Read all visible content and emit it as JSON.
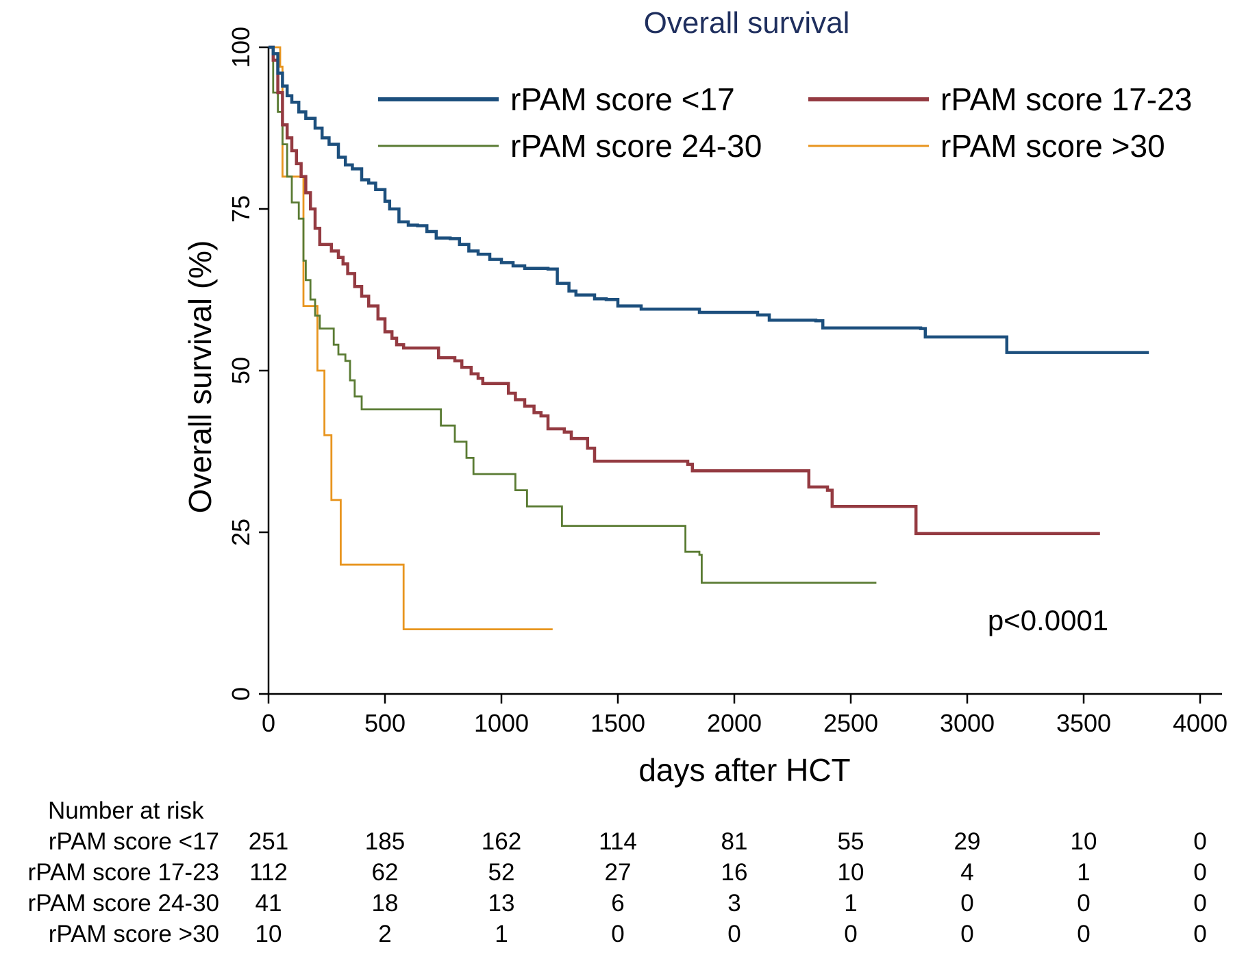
{
  "chart_data": {
    "type": "line",
    "subtype": "kaplan-meier step curve",
    "title": "Overall survival",
    "title_color": "#1f2f5e",
    "xlabel": "days after HCT",
    "ylabel": "Overall survival (%)",
    "xlim": [
      0,
      4000
    ],
    "ylim": [
      0,
      100
    ],
    "xticks": [
      0,
      500,
      1000,
      1500,
      2000,
      2500,
      3000,
      3500,
      4000
    ],
    "yticks": [
      0,
      25,
      50,
      75,
      100
    ],
    "grid": false,
    "legend_position": "top-right",
    "annotation": "p<0.0001",
    "series": [
      {
        "name": "rPAM score <17",
        "color": "#1c4f7d",
        "line_weight": "thick",
        "points": [
          [
            0,
            100
          ],
          [
            20,
            99
          ],
          [
            40,
            96
          ],
          [
            60,
            94
          ],
          [
            80,
            92.5
          ],
          [
            100,
            91.5
          ],
          [
            130,
            90
          ],
          [
            160,
            89
          ],
          [
            200,
            87.5
          ],
          [
            230,
            86
          ],
          [
            260,
            85
          ],
          [
            300,
            83
          ],
          [
            330,
            81.8
          ],
          [
            360,
            81.2
          ],
          [
            400,
            79.5
          ],
          [
            430,
            79
          ],
          [
            460,
            78
          ],
          [
            500,
            76.2
          ],
          [
            520,
            75
          ],
          [
            560,
            73
          ],
          [
            600,
            72.5
          ],
          [
            640,
            72.4
          ],
          [
            680,
            71.5
          ],
          [
            720,
            70.5
          ],
          [
            780,
            70.4
          ],
          [
            820,
            69.5
          ],
          [
            860,
            68.5
          ],
          [
            900,
            68
          ],
          [
            950,
            67.2
          ],
          [
            1000,
            66.7
          ],
          [
            1050,
            66.2
          ],
          [
            1100,
            65.8
          ],
          [
            1200,
            65.7
          ],
          [
            1240,
            63.5
          ],
          [
            1290,
            62.3
          ],
          [
            1320,
            61.7
          ],
          [
            1400,
            61.1
          ],
          [
            1450,
            61
          ],
          [
            1500,
            60
          ],
          [
            1600,
            59.5
          ],
          [
            1850,
            59
          ],
          [
            2100,
            58.6
          ],
          [
            2150,
            57.8
          ],
          [
            2350,
            57.7
          ],
          [
            2380,
            56.6
          ],
          [
            2800,
            56.5
          ],
          [
            2820,
            55.2
          ],
          [
            3150,
            55.2
          ],
          [
            3170,
            52.8
          ],
          [
            3780,
            52.8
          ]
        ]
      },
      {
        "name": "rPAM score 17-23",
        "color": "#943a41",
        "line_weight": "thick",
        "points": [
          [
            0,
            100
          ],
          [
            20,
            98
          ],
          [
            40,
            93
          ],
          [
            60,
            88
          ],
          [
            80,
            86
          ],
          [
            100,
            84
          ],
          [
            120,
            82
          ],
          [
            140,
            80
          ],
          [
            160,
            77.5
          ],
          [
            180,
            75
          ],
          [
            200,
            72
          ],
          [
            220,
            69.5
          ],
          [
            270,
            68.5
          ],
          [
            300,
            67.5
          ],
          [
            320,
            66.5
          ],
          [
            340,
            65
          ],
          [
            370,
            63
          ],
          [
            400,
            61.5
          ],
          [
            430,
            60
          ],
          [
            470,
            58
          ],
          [
            500,
            56
          ],
          [
            530,
            55
          ],
          [
            550,
            54
          ],
          [
            580,
            53.5
          ],
          [
            700,
            53.5
          ],
          [
            730,
            52
          ],
          [
            800,
            51.5
          ],
          [
            830,
            50.5
          ],
          [
            870,
            49.5
          ],
          [
            900,
            48.8
          ],
          [
            920,
            48
          ],
          [
            1030,
            46.5
          ],
          [
            1060,
            45.5
          ],
          [
            1100,
            44.5
          ],
          [
            1140,
            43.5
          ],
          [
            1170,
            43
          ],
          [
            1200,
            41
          ],
          [
            1270,
            40.5
          ],
          [
            1300,
            39.5
          ],
          [
            1370,
            38
          ],
          [
            1400,
            36
          ],
          [
            1800,
            35.5
          ],
          [
            1820,
            34.5
          ],
          [
            2300,
            34.5
          ],
          [
            2320,
            32
          ],
          [
            2400,
            31.5
          ],
          [
            2420,
            29
          ],
          [
            2760,
            29
          ],
          [
            2780,
            24.8
          ],
          [
            3570,
            24.8
          ]
        ]
      },
      {
        "name": "rPAM score 24-30",
        "color": "#5a7b33",
        "line_weight": "thin",
        "points": [
          [
            0,
            100
          ],
          [
            20,
            93
          ],
          [
            40,
            90
          ],
          [
            60,
            85
          ],
          [
            80,
            80
          ],
          [
            100,
            76
          ],
          [
            130,
            73.5
          ],
          [
            150,
            67
          ],
          [
            160,
            64
          ],
          [
            180,
            61
          ],
          [
            200,
            58.5
          ],
          [
            220,
            56.5
          ],
          [
            280,
            54
          ],
          [
            300,
            52.5
          ],
          [
            330,
            51.5
          ],
          [
            350,
            48.5
          ],
          [
            370,
            46
          ],
          [
            400,
            44
          ],
          [
            710,
            44
          ],
          [
            740,
            41.5
          ],
          [
            800,
            39
          ],
          [
            850,
            36.5
          ],
          [
            880,
            34
          ],
          [
            1040,
            34
          ],
          [
            1060,
            31.5
          ],
          [
            1110,
            29
          ],
          [
            1240,
            29
          ],
          [
            1260,
            26
          ],
          [
            1770,
            26
          ],
          [
            1790,
            22
          ],
          [
            1850,
            21.5
          ],
          [
            1860,
            17.2
          ],
          [
            2610,
            17.2
          ]
        ]
      },
      {
        "name": "rPAM score >30",
        "color": "#e8951f",
        "line_weight": "thin",
        "points": [
          [
            0,
            100
          ],
          [
            30,
            100
          ],
          [
            50,
            97
          ],
          [
            60,
            80
          ],
          [
            80,
            80
          ],
          [
            130,
            80
          ],
          [
            150,
            60
          ],
          [
            200,
            60
          ],
          [
            210,
            50
          ],
          [
            230,
            50
          ],
          [
            240,
            40
          ],
          [
            260,
            40
          ],
          [
            270,
            30
          ],
          [
            290,
            30
          ],
          [
            310,
            20
          ],
          [
            560,
            20
          ],
          [
            580,
            10
          ],
          [
            1220,
            10
          ]
        ]
      }
    ],
    "risk_table": {
      "heading": "Number at risk",
      "times": [
        0,
        500,
        1000,
        1500,
        2000,
        2500,
        3000,
        3500,
        4000
      ],
      "rows": [
        {
          "label": "rPAM score <17",
          "counts": [
            "251",
            "185",
            "162",
            "114",
            "81",
            "55",
            "29",
            "10",
            "0"
          ]
        },
        {
          "label": "rPAM score 17-23",
          "counts": [
            "112",
            "62",
            "52",
            "27",
            "16",
            "10",
            "4",
            "1",
            "0"
          ]
        },
        {
          "label": "rPAM score 24-30",
          "counts": [
            "41",
            "18",
            "13",
            "6",
            "3",
            "1",
            "0",
            "0",
            "0"
          ]
        },
        {
          "label": "rPAM score >30",
          "counts": [
            "10",
            "2",
            "1",
            "0",
            "0",
            "0",
            "0",
            "0",
            "0"
          ]
        }
      ]
    }
  }
}
